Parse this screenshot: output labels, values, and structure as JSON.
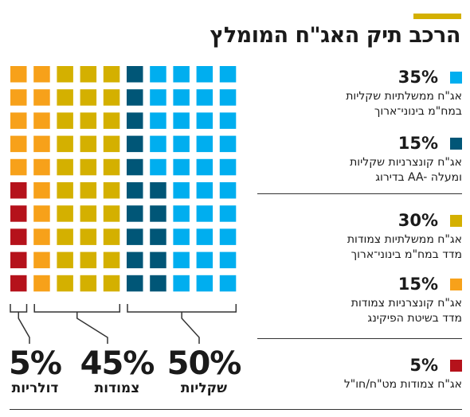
{
  "title": "הרכב תיק האג\"ח המומלץ",
  "colors": {
    "accent": "#d4b000",
    "light_blue": "#00aeef",
    "dark_teal": "#005677",
    "gold": "#d4b000",
    "orange": "#f7a11a",
    "crimson": "#b5121b"
  },
  "legend": [
    {
      "pct": "35%",
      "line1": "אג\"ח ממשלתיות שקליות",
      "line2": "במח\"מ בינוני־ארוך",
      "color": "#00aeef"
    },
    {
      "pct": "15%",
      "line1": "אג\"ח קונצרניות שקליות",
      "line2": "בדירוג AA- ומעלה",
      "color": "#005677"
    },
    {
      "pct": "30%",
      "line1": "אג\"ח ממשלתיות צמודות",
      "line2": "מדד במח\"מ בינוני־ארוך",
      "color": "#d4b000"
    },
    {
      "pct": "15%",
      "line1": "אג\"ח קונצרניות צמודות",
      "line2": "מדד בשיטת הפיקינג",
      "color": "#f7a11a"
    },
    {
      "pct": "5%",
      "line1": "אג\"ח צמודות מט\"ח/חו\"ל",
      "line2": "",
      "color": "#b5121b"
    }
  ],
  "summary": [
    {
      "value": "5%",
      "label": "דולריות"
    },
    {
      "value": "45%",
      "label": "צמודות"
    },
    {
      "value": "50%",
      "label": "שקליות"
    }
  ],
  "chart_data": {
    "type": "waffle",
    "title": "הרכב תיק האג\"ח המומלץ",
    "grid": {
      "rows": 10,
      "cols": 10
    },
    "series": [
      {
        "name": "אג\"ח ממשלתיות שקליות במח\"מ בינוני־ארוך",
        "value": 35
      },
      {
        "name": "אג\"ח קונצרניות שקליות בדירוג AA- ומעלה",
        "value": 15
      },
      {
        "name": "אג\"ח ממשלתיות צמודות מדד במח\"מ בינוני־ארוך",
        "value": 30
      },
      {
        "name": "אג\"ח קונצרניות צמודות מדד בשיטת הפיקינג",
        "value": 15
      },
      {
        "name": "אג\"ח צמודות מט\"ח/חו\"ל",
        "value": 5
      }
    ],
    "groups": [
      {
        "name": "דולריות",
        "value": 5
      },
      {
        "name": "צמודות",
        "value": 45
      },
      {
        "name": "שקליות",
        "value": 50
      }
    ]
  }
}
